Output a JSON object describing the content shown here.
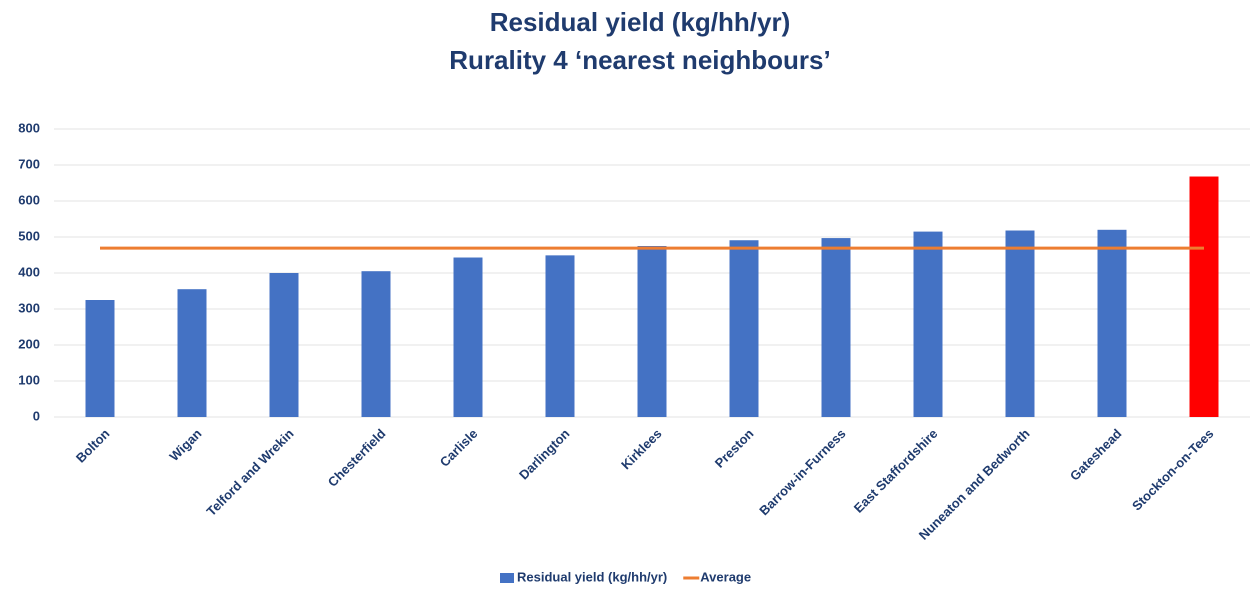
{
  "chart_data": {
    "type": "bar",
    "title": "Residual yield (kg/hh/yr)",
    "subtitle": "Rurality 4 ‘nearest neighbours’",
    "categories": [
      "Bolton",
      "Wigan",
      "Telford and Wrekin",
      "Chesterfield",
      "Carlisle",
      "Darlington",
      "Kirklees",
      "Preston",
      "Barrow-in-Furness",
      "East Staffordshire",
      "Nuneaton and Bedworth",
      "Gateshead",
      "Stockton-on-Tees"
    ],
    "series": [
      {
        "name": "Residual yield (kg/hh/yr)",
        "type": "bar",
        "color": "#4472c4",
        "colors": [
          "#4472c4",
          "#4472c4",
          "#4472c4",
          "#4472c4",
          "#4472c4",
          "#4472c4",
          "#4472c4",
          "#4472c4",
          "#4472c4",
          "#4472c4",
          "#4472c4",
          "#4472c4",
          "#ff0000"
        ],
        "values": [
          325,
          355,
          400,
          405,
          443,
          449,
          475,
          491,
          497,
          515,
          518,
          520,
          668
        ]
      },
      {
        "name": "Average",
        "type": "line",
        "color": "#ed7d31",
        "values": [
          469,
          469,
          469,
          469,
          469,
          469,
          469,
          469,
          469,
          469,
          469,
          469,
          469
        ]
      }
    ],
    "ylim": [
      0,
      800
    ],
    "yticks": [
      0,
      100,
      200,
      300,
      400,
      500,
      600,
      700,
      800
    ],
    "grid": true,
    "legend": "bottom"
  }
}
